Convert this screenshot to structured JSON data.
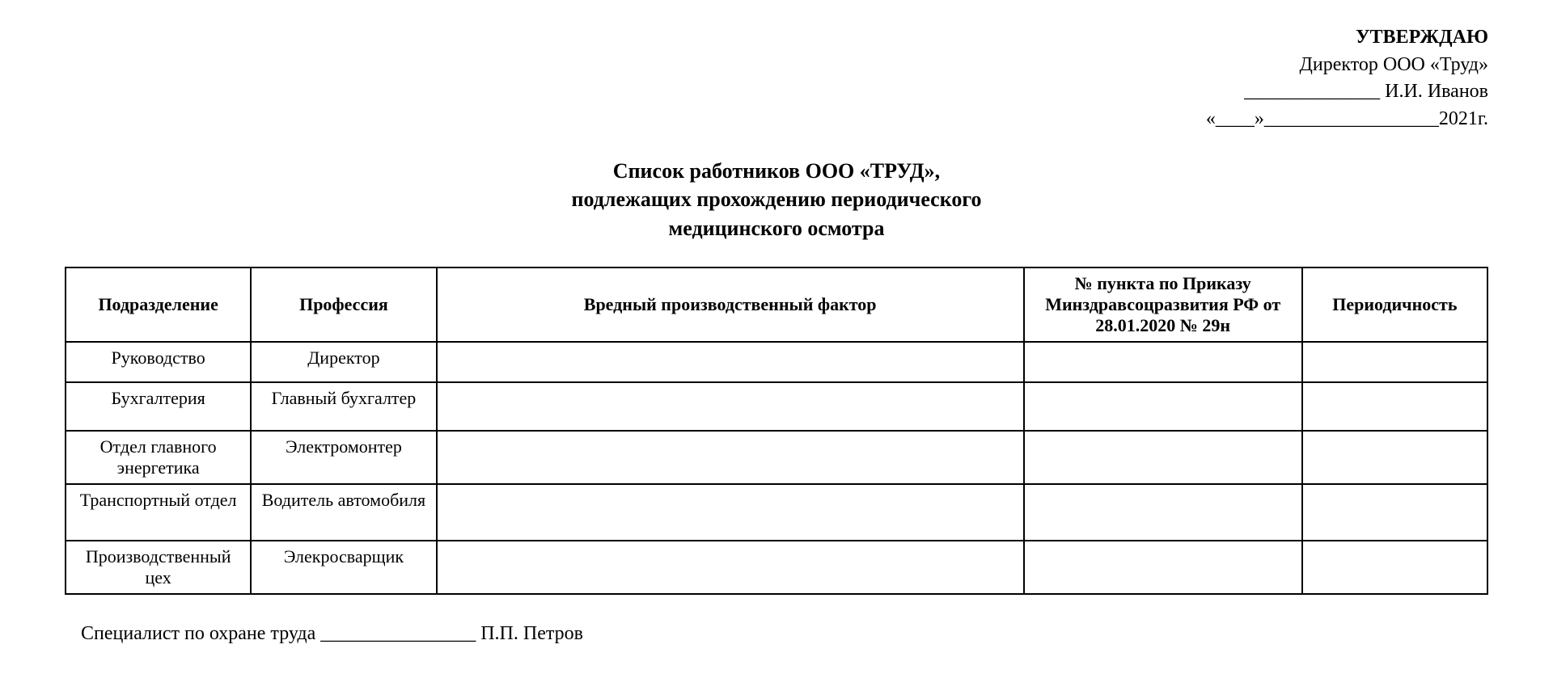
{
  "approval": {
    "title": "УТВЕРЖДАЮ",
    "director_line": "Директор ООО «Труд»",
    "name_line": "______________ И.И. Иванов",
    "date_line": "«____»__________________2021г."
  },
  "title": {
    "line1": "Список работников ООО «ТРУД»,",
    "line2": "подлежащих прохождению периодического",
    "line3": "медицинского осмотра"
  },
  "table": {
    "headers": {
      "department": "Подразделение",
      "profession": "Профессия",
      "factor": "Вредный производственный фактор",
      "order": "№ пункта по Приказу Минздравсоцразвития РФ от 28.01.2020 № 29н",
      "periodicity": "Периодичность"
    },
    "rows": [
      {
        "department": "Руководство",
        "profession": "Директор",
        "factor": "",
        "order": "",
        "periodicity": ""
      },
      {
        "department": "Бухгалтерия",
        "profession": "Главный бухгалтер",
        "factor": "",
        "order": "",
        "periodicity": ""
      },
      {
        "department": "Отдел главного энергетика",
        "profession": "Электромонтер",
        "factor": "",
        "order": "",
        "periodicity": ""
      },
      {
        "department": "Транспортный отдел",
        "profession": "Водитель автомобиля",
        "factor": "",
        "order": "",
        "periodicity": ""
      },
      {
        "department": "Производственный цех",
        "profession": "Элекросварщик",
        "factor": "",
        "order": "",
        "periodicity": ""
      }
    ]
  },
  "signature": {
    "text": "Специалист по охране труда ________________ П.П. Петров"
  }
}
